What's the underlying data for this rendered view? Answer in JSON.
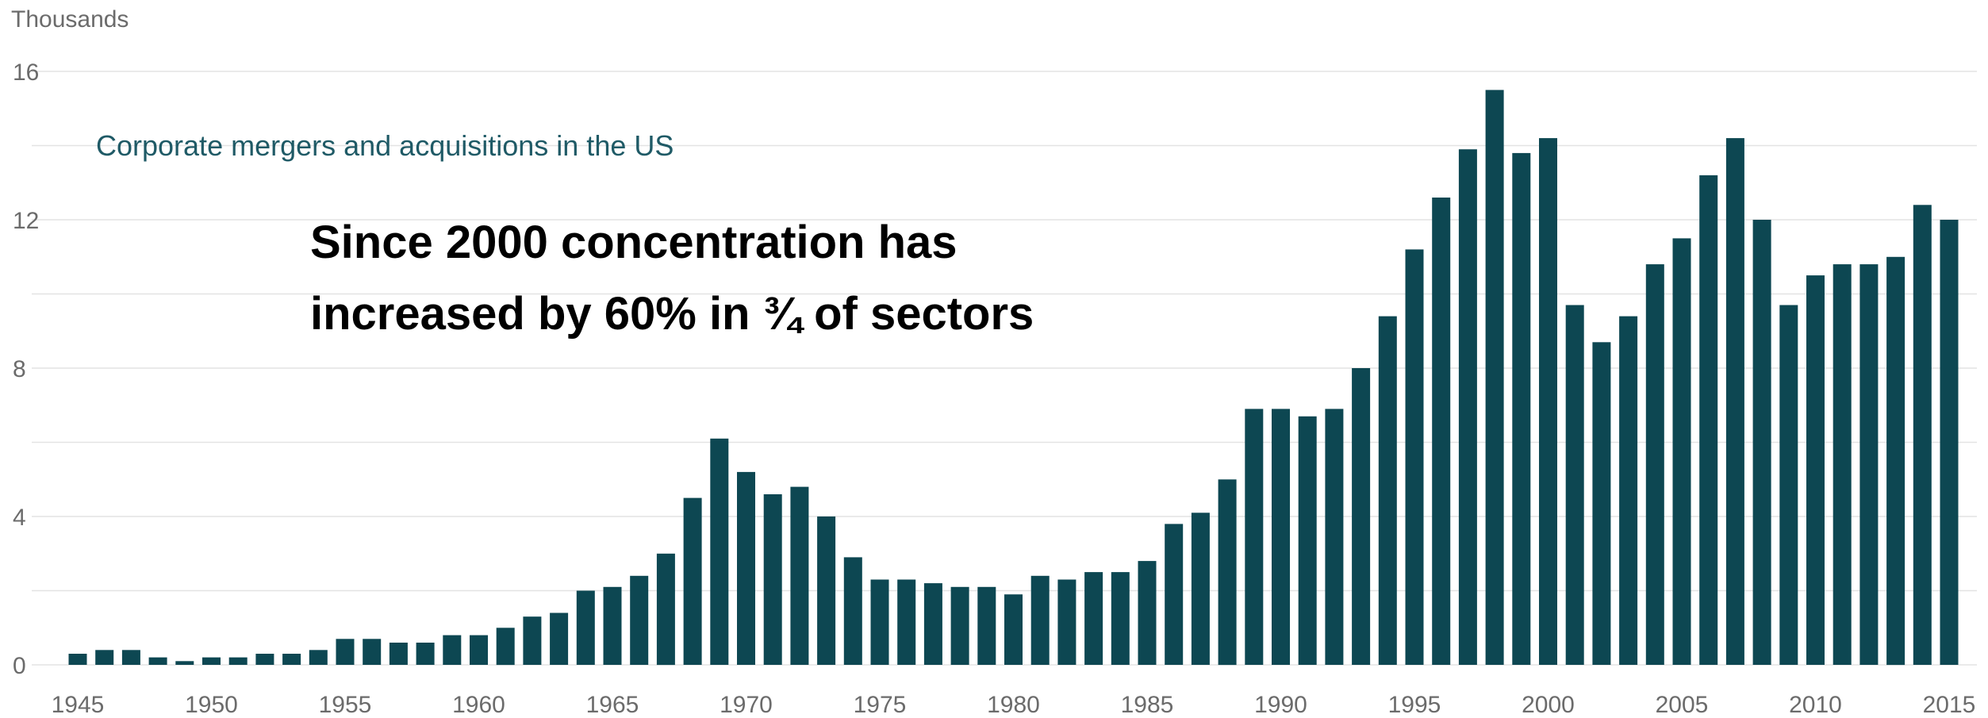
{
  "chart_data": {
    "type": "bar",
    "title": "Corporate mergers and acquisitions in the US",
    "unit_label": "Thousands",
    "annotation": {
      "line1": "Since 2000 concentration has",
      "line2": "increased by 60% in ¾ of sectors"
    },
    "ylim": [
      0,
      16
    ],
    "yticks": [
      0,
      4,
      8,
      12,
      16
    ],
    "xtick_labels": [
      "1945",
      "1950",
      "1955",
      "1960",
      "1965",
      "1970",
      "1975",
      "1980",
      "1985",
      "1990",
      "1995",
      "2000",
      "2005",
      "2010",
      "2015"
    ],
    "grid": true,
    "bar_color": "#0d4752",
    "categories": [
      1945,
      1946,
      1947,
      1948,
      1949,
      1950,
      1951,
      1952,
      1953,
      1954,
      1955,
      1956,
      1957,
      1958,
      1959,
      1960,
      1961,
      1962,
      1963,
      1964,
      1965,
      1966,
      1967,
      1968,
      1969,
      1970,
      1971,
      1972,
      1973,
      1974,
      1975,
      1976,
      1977,
      1978,
      1979,
      1980,
      1981,
      1982,
      1983,
      1984,
      1985,
      1986,
      1987,
      1988,
      1989,
      1990,
      1991,
      1992,
      1993,
      1994,
      1995,
      1996,
      1997,
      1998,
      1999,
      2000,
      2001,
      2002,
      2003,
      2004,
      2005,
      2006,
      2007,
      2008,
      2009,
      2010,
      2011,
      2012,
      2013,
      2014,
      2015
    ],
    "values": [
      0.3,
      0.4,
      0.4,
      0.2,
      0.1,
      0.2,
      0.2,
      0.3,
      0.3,
      0.4,
      0.7,
      0.7,
      0.6,
      0.6,
      0.8,
      0.8,
      1.0,
      1.3,
      1.4,
      2.0,
      2.1,
      2.4,
      3.0,
      4.5,
      6.1,
      5.2,
      4.6,
      4.8,
      4.0,
      2.9,
      2.3,
      2.3,
      2.2,
      2.1,
      2.1,
      1.9,
      2.4,
      2.3,
      2.5,
      2.5,
      2.8,
      3.8,
      4.1,
      5.0,
      6.9,
      6.9,
      6.7,
      6.9,
      8.0,
      9.4,
      11.2,
      12.6,
      13.9,
      15.5,
      13.8,
      14.2,
      9.7,
      8.7,
      9.4,
      10.8,
      11.5,
      13.2,
      14.2,
      12.0,
      9.7,
      10.5,
      10.8,
      10.8,
      11.0,
      12.4,
      12.0
    ]
  }
}
